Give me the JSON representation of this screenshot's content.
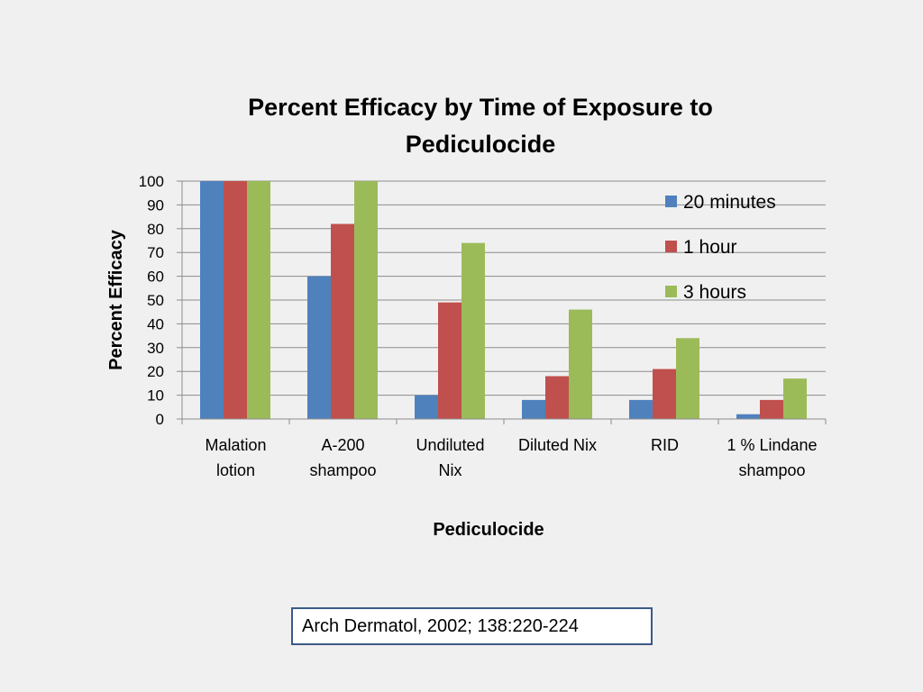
{
  "chart_data": {
    "type": "bar",
    "title": [
      "Percent Efficacy by Time of Exposure to",
      "Pediculocide"
    ],
    "xlabel": "Pediculocide",
    "ylabel": "Percent Efficacy",
    "ylim": [
      0,
      100
    ],
    "yticks": [
      "0",
      "10",
      "20",
      "30",
      "40",
      "50",
      "60",
      "70",
      "80",
      "90",
      "100"
    ],
    "grid": true,
    "legend_position": "right",
    "categories": [
      [
        "Malation",
        "lotion"
      ],
      [
        "A-200",
        "shampoo"
      ],
      [
        "Undiluted",
        "Nix"
      ],
      [
        "Diluted Nix"
      ],
      [
        "RID"
      ],
      [
        "1 % Lindane",
        "shampoo"
      ]
    ],
    "series": [
      {
        "name": "20 minutes",
        "color": "#4f81bd",
        "values": [
          100,
          60,
          10,
          8,
          8,
          2
        ]
      },
      {
        "name": "1 hour",
        "color": "#c0504d",
        "values": [
          100,
          82,
          49,
          18,
          21,
          8
        ]
      },
      {
        "name": "3 hours",
        "color": "#9bbb59",
        "values": [
          100,
          100,
          74,
          46,
          34,
          17
        ]
      }
    ]
  },
  "citation": {
    "text": "Arch Dermatol, 2002; 138:220-224"
  }
}
